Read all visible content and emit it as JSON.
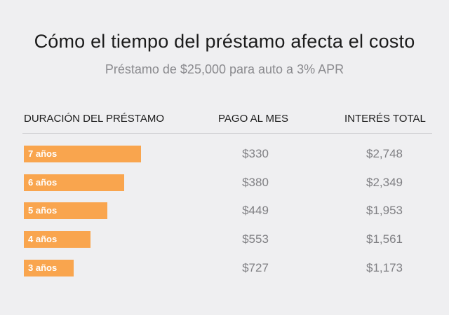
{
  "title": "Cómo el tiempo del préstamo afecta el costo",
  "subtitle": "Préstamo de $25,000 para auto a 3% APR",
  "headers": {
    "duration": "DURACIÓN DEL PRÉSTAMO",
    "payment": "PAGO AL MES",
    "interest": "INTERÉS TOTAL"
  },
  "colors": {
    "bar": "#f9a54e",
    "background": "#efeff1"
  },
  "chart_data": {
    "type": "table",
    "columns": [
      "DURACIÓN DEL PRÉSTAMO",
      "PAGO AL MES",
      "INTERÉS TOTAL"
    ],
    "rows": [
      {
        "term": "7 años",
        "years": 7,
        "payment": "$330",
        "interest": "$2,748"
      },
      {
        "term": "6 años",
        "years": 6,
        "payment": "$380",
        "interest": "$2,349"
      },
      {
        "term": "5 años",
        "years": 5,
        "payment": "$449",
        "interest": "$1,953"
      },
      {
        "term": "4 años",
        "years": 4,
        "payment": "$553",
        "interest": "$1,561"
      },
      {
        "term": "3 años",
        "years": 3,
        "payment": "$727",
        "interest": "$1,173"
      }
    ]
  }
}
